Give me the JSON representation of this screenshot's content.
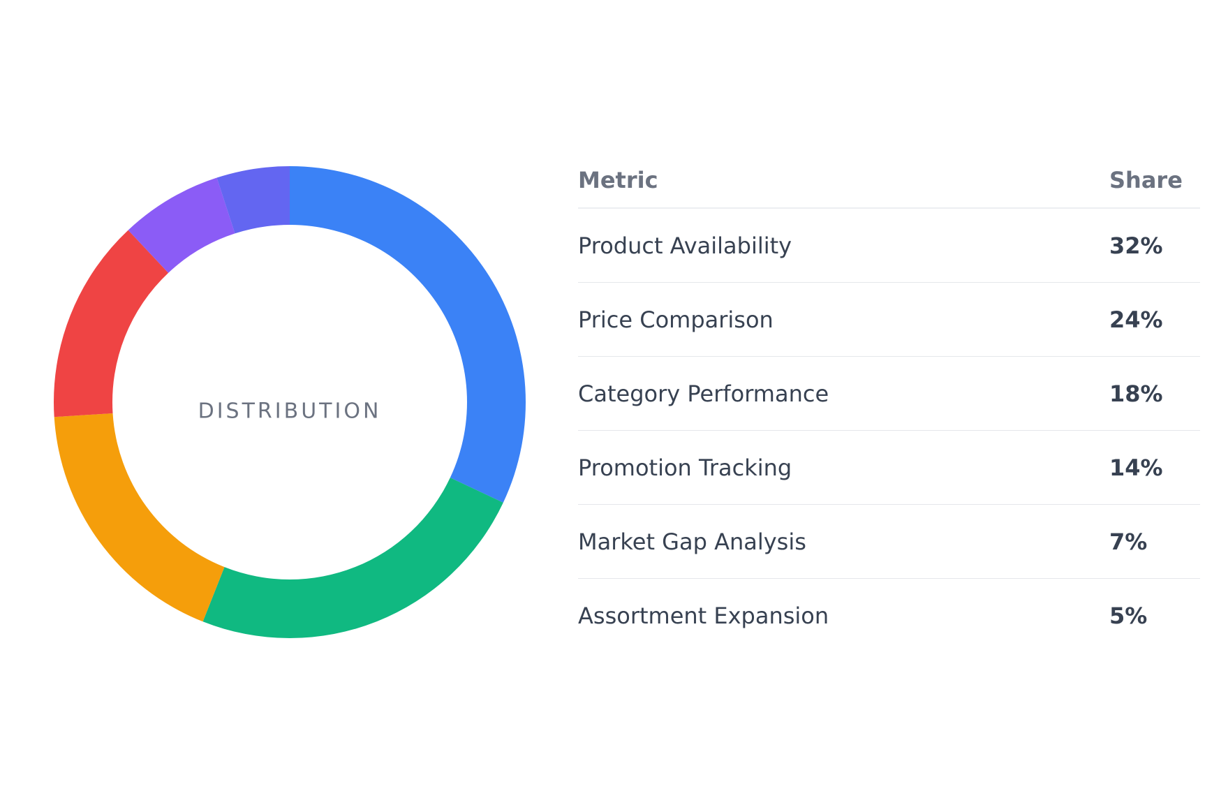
{
  "chart_data": {
    "type": "pie",
    "center_label": "DISTRIBUTION",
    "categories": [
      "Product Availability",
      "Price Comparison",
      "Category Performance",
      "Promotion Tracking",
      "Market Gap Analysis",
      "Assortment Expansion"
    ],
    "values": [
      32,
      24,
      18,
      14,
      7,
      5
    ],
    "colors": [
      "#3b82f6",
      "#10b981",
      "#f59e0b",
      "#ef4444",
      "#8b5cf6",
      "#6366f1"
    ],
    "grid": false
  },
  "table": {
    "header_metric": "Metric",
    "header_share": "Share",
    "rows": [
      {
        "metric": "Product Availability",
        "share": "32%"
      },
      {
        "metric": "Price Comparison",
        "share": "24%"
      },
      {
        "metric": "Category Performance",
        "share": "18%"
      },
      {
        "metric": "Promotion Tracking",
        "share": "14%"
      },
      {
        "metric": "Market Gap Analysis",
        "share": "7%"
      },
      {
        "metric": "Assortment Expansion",
        "share": "5%"
      }
    ]
  }
}
